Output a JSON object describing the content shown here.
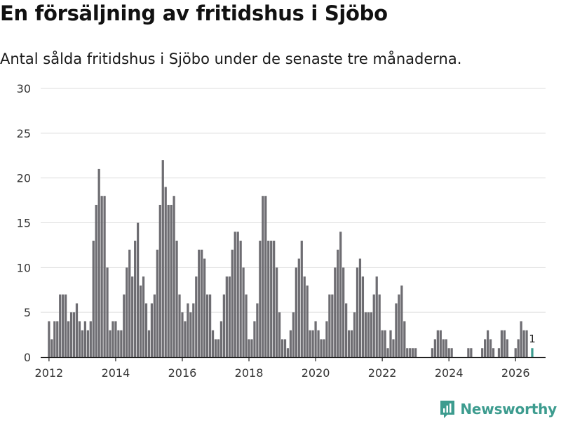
{
  "header": {
    "title": "En försäljning av fritidshus i Sjöbo",
    "subtitle": "Antal sålda fritidshus i Sjöbo under de senaste tre månaderna."
  },
  "brand": {
    "name": "Newsworthy",
    "icon": "newsworthy-logo-icon",
    "color": "#3d9c8f"
  },
  "chart_data": {
    "type": "bar",
    "title": "En försäljning av fritidshus i Sjöbo",
    "subtitle": "Antal sålda fritidshus i Sjöbo under de senaste tre månaderna.",
    "xlabel": "",
    "ylabel": "",
    "ylim": [
      0,
      30
    ],
    "yticks": [
      0,
      5,
      10,
      15,
      20,
      25,
      30
    ],
    "xticks": [
      2012,
      2014,
      2016,
      2018,
      2020,
      2022,
      2024,
      2026
    ],
    "xlim": [
      2011.75,
      2026.9
    ],
    "grid": true,
    "bar_color": "#6e6d72",
    "highlight_color": "#3d9c8f",
    "start": 2012,
    "step": 0.0833333,
    "values": [
      4,
      2,
      4,
      4,
      7,
      7,
      7,
      4,
      5,
      5,
      6,
      4,
      3,
      4,
      3,
      4,
      13,
      17,
      21,
      18,
      18,
      10,
      3,
      4,
      4,
      3,
      3,
      7,
      10,
      12,
      9,
      13,
      15,
      8,
      9,
      6,
      3,
      6,
      7,
      12,
      17,
      22,
      19,
      17,
      17,
      18,
      13,
      7,
      5,
      4,
      6,
      5,
      6,
      9,
      12,
      12,
      11,
      7,
      7,
      3,
      2,
      2,
      4,
      7,
      9,
      9,
      12,
      14,
      14,
      13,
      10,
      7,
      2,
      2,
      4,
      6,
      13,
      18,
      18,
      13,
      13,
      13,
      10,
      5,
      2,
      2,
      1,
      3,
      5,
      10,
      11,
      13,
      9,
      8,
      3,
      3,
      4,
      3,
      2,
      2,
      4,
      7,
      7,
      10,
      12,
      14,
      10,
      6,
      3,
      3,
      5,
      10,
      11,
      9,
      5,
      5,
      5,
      7,
      9,
      7,
      3,
      3,
      1,
      3,
      2,
      6,
      7,
      8,
      4,
      1,
      1,
      1,
      1,
      0,
      0,
      0,
      0,
      0,
      1,
      2,
      3,
      3,
      2,
      2,
      1,
      1,
      0,
      0,
      0,
      0,
      0,
      1,
      1,
      0,
      0,
      0,
      1,
      2,
      3,
      2,
      1,
      0,
      1,
      3,
      3,
      2,
      0,
      0,
      1,
      2,
      4,
      3,
      3,
      0,
      1
    ],
    "highlight": {
      "index": 174,
      "value": 1,
      "label": "1"
    }
  }
}
